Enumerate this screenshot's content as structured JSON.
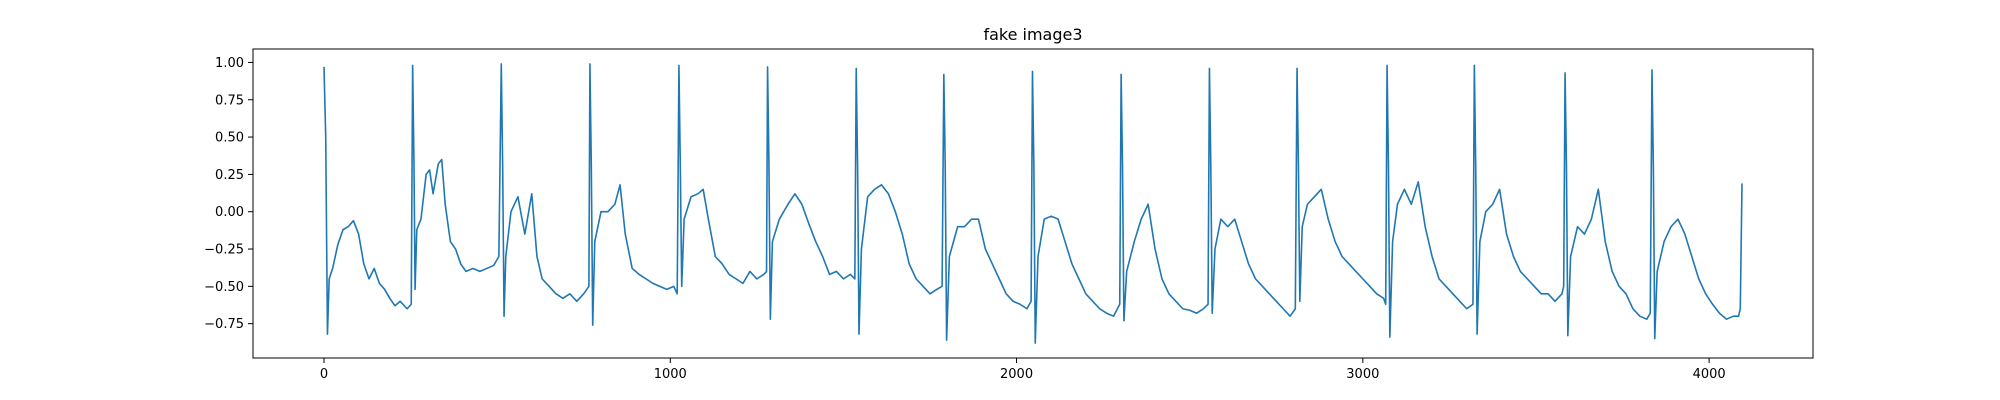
{
  "chart_data": {
    "type": "line",
    "title": "fake image3",
    "xlabel": "",
    "ylabel": "",
    "xlim": [
      -205,
      4300
    ],
    "ylim": [
      -0.98,
      1.09
    ],
    "grid": false,
    "legend": "none",
    "line_color": "#1f77b4",
    "xticks": [
      {
        "value": 0,
        "label": "0"
      },
      {
        "value": 1000,
        "label": "1000"
      },
      {
        "value": 2000,
        "label": "2000"
      },
      {
        "value": 3000,
        "label": "3000"
      },
      {
        "value": 4000,
        "label": "4000"
      }
    ],
    "yticks": [
      {
        "value": 1.0,
        "label": "1.00"
      },
      {
        "value": 0.75,
        "label": "0.75"
      },
      {
        "value": 0.5,
        "label": "0.50"
      },
      {
        "value": 0.25,
        "label": "0.25"
      },
      {
        "value": 0.0,
        "label": "0.00"
      },
      {
        "value": -0.25,
        "label": "−0.25"
      },
      {
        "value": -0.5,
        "label": "−0.50"
      },
      {
        "value": -0.75,
        "label": "−0.75"
      }
    ],
    "series": [
      {
        "points": [
          [
            0,
            0.97
          ],
          [
            5,
            0.5
          ],
          [
            10,
            -0.82
          ],
          [
            15,
            -0.45
          ],
          [
            25,
            -0.38
          ],
          [
            40,
            -0.22
          ],
          [
            55,
            -0.12
          ],
          [
            70,
            -0.1
          ],
          [
            85,
            -0.06
          ],
          [
            100,
            -0.15
          ],
          [
            115,
            -0.35
          ],
          [
            130,
            -0.45
          ],
          [
            145,
            -0.38
          ],
          [
            160,
            -0.48
          ],
          [
            175,
            -0.52
          ],
          [
            190,
            -0.58
          ],
          [
            205,
            -0.63
          ],
          [
            220,
            -0.6
          ],
          [
            240,
            -0.65
          ],
          [
            252,
            -0.62
          ],
          [
            256,
            0.98
          ],
          [
            260,
            0.3
          ],
          [
            263,
            -0.52
          ],
          [
            268,
            -0.12
          ],
          [
            280,
            -0.05
          ],
          [
            295,
            0.25
          ],
          [
            305,
            0.28
          ],
          [
            315,
            0.12
          ],
          [
            330,
            0.32
          ],
          [
            340,
            0.35
          ],
          [
            350,
            0.05
          ],
          [
            365,
            -0.2
          ],
          [
            380,
            -0.25
          ],
          [
            395,
            -0.35
          ],
          [
            410,
            -0.4
          ],
          [
            430,
            -0.38
          ],
          [
            450,
            -0.4
          ],
          [
            470,
            -0.38
          ],
          [
            490,
            -0.36
          ],
          [
            505,
            -0.3
          ],
          [
            512,
            0.99
          ],
          [
            516,
            0.3
          ],
          [
            520,
            -0.7
          ],
          [
            525,
            -0.3
          ],
          [
            540,
            0.0
          ],
          [
            560,
            0.1
          ],
          [
            580,
            -0.15
          ],
          [
            600,
            0.12
          ],
          [
            615,
            -0.3
          ],
          [
            630,
            -0.45
          ],
          [
            650,
            -0.5
          ],
          [
            670,
            -0.55
          ],
          [
            690,
            -0.58
          ],
          [
            710,
            -0.55
          ],
          [
            730,
            -0.6
          ],
          [
            750,
            -0.55
          ],
          [
            765,
            -0.5
          ],
          [
            768,
            0.99
          ],
          [
            772,
            0.3
          ],
          [
            776,
            -0.76
          ],
          [
            782,
            -0.2
          ],
          [
            800,
            0.0
          ],
          [
            820,
            0.0
          ],
          [
            840,
            0.05
          ],
          [
            855,
            0.18
          ],
          [
            870,
            -0.15
          ],
          [
            890,
            -0.38
          ],
          [
            910,
            -0.42
          ],
          [
            930,
            -0.45
          ],
          [
            950,
            -0.48
          ],
          [
            970,
            -0.5
          ],
          [
            990,
            -0.52
          ],
          [
            1010,
            -0.5
          ],
          [
            1020,
            -0.55
          ],
          [
            1025,
            0.98
          ],
          [
            1029,
            0.3
          ],
          [
            1033,
            -0.5
          ],
          [
            1040,
            -0.05
          ],
          [
            1060,
            0.1
          ],
          [
            1080,
            0.12
          ],
          [
            1095,
            0.15
          ],
          [
            1110,
            -0.05
          ],
          [
            1130,
            -0.3
          ],
          [
            1150,
            -0.35
          ],
          [
            1170,
            -0.42
          ],
          [
            1190,
            -0.45
          ],
          [
            1210,
            -0.48
          ],
          [
            1230,
            -0.4
          ],
          [
            1250,
            -0.45
          ],
          [
            1270,
            -0.42
          ],
          [
            1278,
            -0.4
          ],
          [
            1281,
            0.97
          ],
          [
            1285,
            0.3
          ],
          [
            1289,
            -0.72
          ],
          [
            1295,
            -0.2
          ],
          [
            1315,
            -0.05
          ],
          [
            1340,
            0.05
          ],
          [
            1360,
            0.12
          ],
          [
            1380,
            0.05
          ],
          [
            1400,
            -0.08
          ],
          [
            1420,
            -0.2
          ],
          [
            1440,
            -0.3
          ],
          [
            1460,
            -0.42
          ],
          [
            1480,
            -0.4
          ],
          [
            1500,
            -0.45
          ],
          [
            1520,
            -0.42
          ],
          [
            1533,
            -0.45
          ],
          [
            1537,
            0.96
          ],
          [
            1541,
            0.3
          ],
          [
            1545,
            -0.82
          ],
          [
            1552,
            -0.25
          ],
          [
            1570,
            0.1
          ],
          [
            1590,
            0.15
          ],
          [
            1610,
            0.18
          ],
          [
            1630,
            0.12
          ],
          [
            1650,
            0.0
          ],
          [
            1670,
            -0.15
          ],
          [
            1690,
            -0.35
          ],
          [
            1710,
            -0.45
          ],
          [
            1730,
            -0.5
          ],
          [
            1750,
            -0.55
          ],
          [
            1770,
            -0.52
          ],
          [
            1785,
            -0.5
          ],
          [
            1790,
            0.92
          ],
          [
            1794,
            0.3
          ],
          [
            1798,
            -0.86
          ],
          [
            1806,
            -0.3
          ],
          [
            1830,
            -0.1
          ],
          [
            1850,
            -0.1
          ],
          [
            1870,
            -0.05
          ],
          [
            1890,
            -0.05
          ],
          [
            1910,
            -0.25
          ],
          [
            1930,
            -0.35
          ],
          [
            1950,
            -0.45
          ],
          [
            1970,
            -0.55
          ],
          [
            1990,
            -0.6
          ],
          [
            2010,
            -0.62
          ],
          [
            2030,
            -0.65
          ],
          [
            2042,
            -0.6
          ],
          [
            2046,
            0.94
          ],
          [
            2050,
            0.3
          ],
          [
            2054,
            -0.88
          ],
          [
            2062,
            -0.3
          ],
          [
            2080,
            -0.05
          ],
          [
            2100,
            -0.03
          ],
          [
            2120,
            -0.05
          ],
          [
            2140,
            -0.2
          ],
          [
            2160,
            -0.35
          ],
          [
            2180,
            -0.45
          ],
          [
            2200,
            -0.55
          ],
          [
            2220,
            -0.6
          ],
          [
            2240,
            -0.65
          ],
          [
            2260,
            -0.68
          ],
          [
            2280,
            -0.7
          ],
          [
            2298,
            -0.62
          ],
          [
            2302,
            0.92
          ],
          [
            2306,
            0.3
          ],
          [
            2310,
            -0.73
          ],
          [
            2318,
            -0.4
          ],
          [
            2340,
            -0.2
          ],
          [
            2360,
            -0.05
          ],
          [
            2380,
            0.05
          ],
          [
            2400,
            -0.25
          ],
          [
            2420,
            -0.45
          ],
          [
            2440,
            -0.55
          ],
          [
            2460,
            -0.6
          ],
          [
            2480,
            -0.65
          ],
          [
            2500,
            -0.66
          ],
          [
            2520,
            -0.68
          ],
          [
            2540,
            -0.65
          ],
          [
            2553,
            -0.62
          ],
          [
            2557,
            0.96
          ],
          [
            2561,
            0.3
          ],
          [
            2565,
            -0.68
          ],
          [
            2573,
            -0.25
          ],
          [
            2590,
            -0.05
          ],
          [
            2610,
            -0.1
          ],
          [
            2630,
            -0.05
          ],
          [
            2650,
            -0.2
          ],
          [
            2670,
            -0.35
          ],
          [
            2690,
            -0.45
          ],
          [
            2710,
            -0.5
          ],
          [
            2730,
            -0.55
          ],
          [
            2750,
            -0.6
          ],
          [
            2770,
            -0.65
          ],
          [
            2790,
            -0.7
          ],
          [
            2805,
            -0.65
          ],
          [
            2810,
            0.96
          ],
          [
            2814,
            0.3
          ],
          [
            2818,
            -0.6
          ],
          [
            2825,
            -0.1
          ],
          [
            2840,
            0.05
          ],
          [
            2860,
            0.1
          ],
          [
            2880,
            0.15
          ],
          [
            2900,
            -0.05
          ],
          [
            2920,
            -0.2
          ],
          [
            2940,
            -0.3
          ],
          [
            2960,
            -0.35
          ],
          [
            2980,
            -0.4
          ],
          [
            3000,
            -0.45
          ],
          [
            3020,
            -0.5
          ],
          [
            3040,
            -0.55
          ],
          [
            3060,
            -0.58
          ],
          [
            3066,
            -0.62
          ],
          [
            3070,
            0.98
          ],
          [
            3074,
            0.3
          ],
          [
            3078,
            -0.84
          ],
          [
            3086,
            -0.2
          ],
          [
            3100,
            0.05
          ],
          [
            3120,
            0.15
          ],
          [
            3140,
            0.05
          ],
          [
            3160,
            0.2
          ],
          [
            3180,
            -0.1
          ],
          [
            3200,
            -0.3
          ],
          [
            3220,
            -0.45
          ],
          [
            3240,
            -0.5
          ],
          [
            3260,
            -0.55
          ],
          [
            3280,
            -0.6
          ],
          [
            3300,
            -0.65
          ],
          [
            3318,
            -0.62
          ],
          [
            3322,
            0.98
          ],
          [
            3326,
            0.3
          ],
          [
            3330,
            -0.82
          ],
          [
            3338,
            -0.2
          ],
          [
            3355,
            0.0
          ],
          [
            3375,
            0.05
          ],
          [
            3395,
            0.15
          ],
          [
            3415,
            -0.15
          ],
          [
            3435,
            -0.3
          ],
          [
            3455,
            -0.4
          ],
          [
            3475,
            -0.45
          ],
          [
            3495,
            -0.5
          ],
          [
            3515,
            -0.55
          ],
          [
            3535,
            -0.55
          ],
          [
            3555,
            -0.6
          ],
          [
            3575,
            -0.55
          ],
          [
            3580,
            -0.5
          ],
          [
            3584,
            0.93
          ],
          [
            3588,
            0.3
          ],
          [
            3592,
            -0.83
          ],
          [
            3600,
            -0.3
          ],
          [
            3620,
            -0.1
          ],
          [
            3640,
            -0.15
          ],
          [
            3660,
            -0.05
          ],
          [
            3680,
            0.15
          ],
          [
            3700,
            -0.2
          ],
          [
            3720,
            -0.4
          ],
          [
            3740,
            -0.5
          ],
          [
            3760,
            -0.55
          ],
          [
            3780,
            -0.65
          ],
          [
            3800,
            -0.7
          ],
          [
            3820,
            -0.72
          ],
          [
            3830,
            -0.68
          ],
          [
            3835,
            0.95
          ],
          [
            3839,
            0.3
          ],
          [
            3843,
            -0.85
          ],
          [
            3850,
            -0.4
          ],
          [
            3870,
            -0.2
          ],
          [
            3890,
            -0.1
          ],
          [
            3910,
            -0.05
          ],
          [
            3930,
            -0.15
          ],
          [
            3950,
            -0.3
          ],
          [
            3970,
            -0.45
          ],
          [
            3990,
            -0.55
          ],
          [
            4010,
            -0.62
          ],
          [
            4030,
            -0.68
          ],
          [
            4050,
            -0.72
          ],
          [
            4070,
            -0.7
          ],
          [
            4085,
            -0.7
          ],
          [
            4090,
            -0.65
          ],
          [
            4095,
            0.19
          ]
        ]
      }
    ]
  }
}
